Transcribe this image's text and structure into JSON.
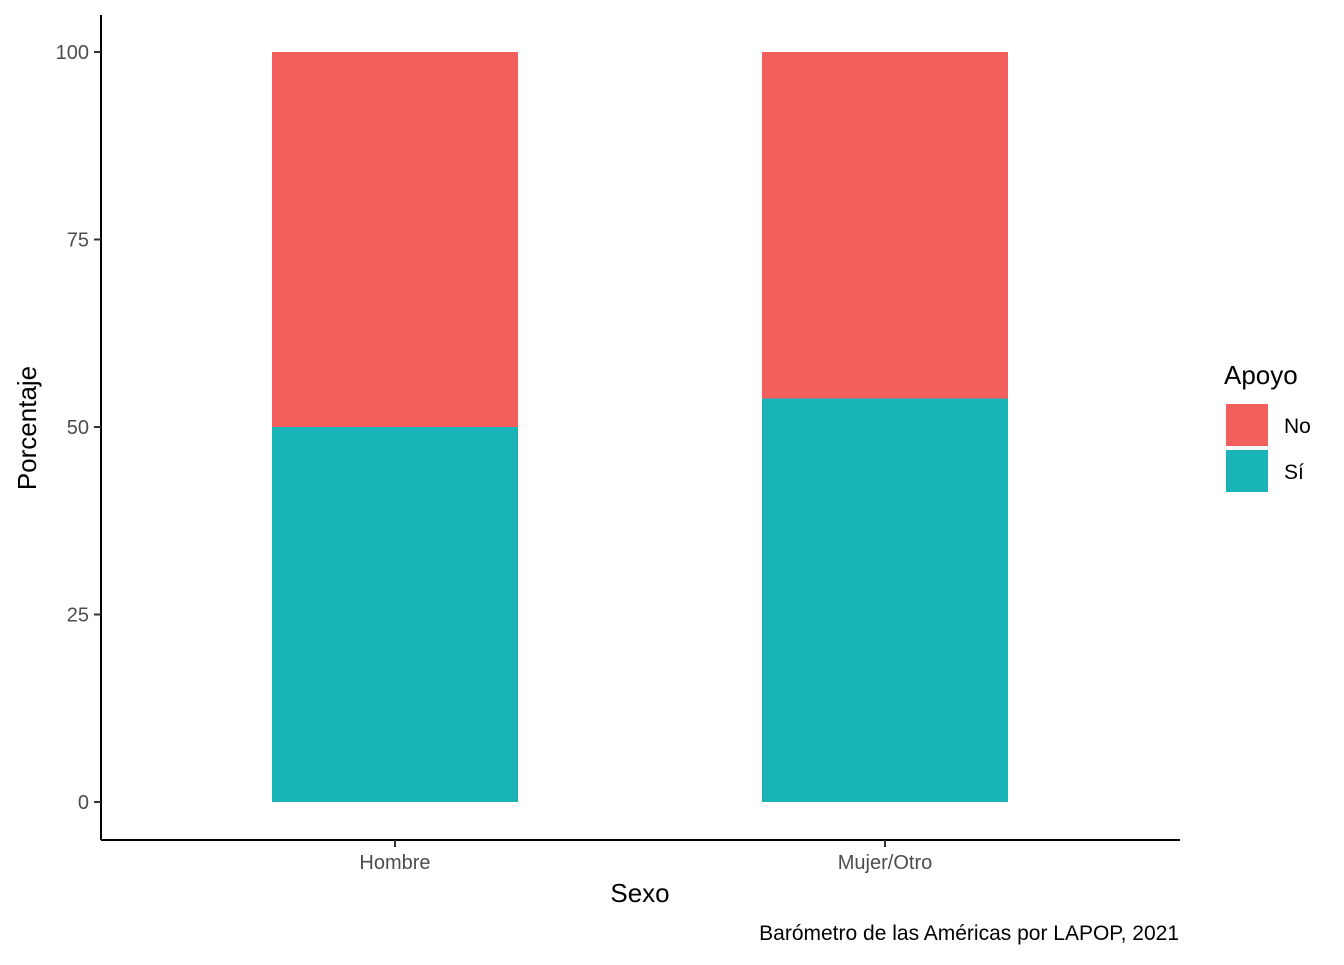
{
  "chart_data": {
    "type": "bar",
    "stacked": true,
    "categories": [
      "Hombre",
      "Mujer/Otro"
    ],
    "series": [
      {
        "name": "Sí",
        "values": [
          50,
          53.8
        ],
        "color": "#19B4B8"
      },
      {
        "name": "No",
        "values": [
          50,
          46.2
        ],
        "color": "#F25F5C"
      }
    ],
    "xlabel": "Sexo",
    "ylabel": "Porcentaje",
    "ylim": [
      0,
      100
    ],
    "yticks": [
      0,
      25,
      50,
      75,
      100
    ],
    "ytick_labels": [
      "0",
      "25",
      "50",
      "75",
      "100"
    ],
    "legend": {
      "title": "Apoyo",
      "position": "right",
      "items": [
        {
          "label": "No",
          "color": "#F25F5C"
        },
        {
          "label": "Sí",
          "color": "#19B4B8"
        }
      ]
    },
    "caption": "Barómetro de las Américas por LAPOP, 2021",
    "grid": false
  }
}
